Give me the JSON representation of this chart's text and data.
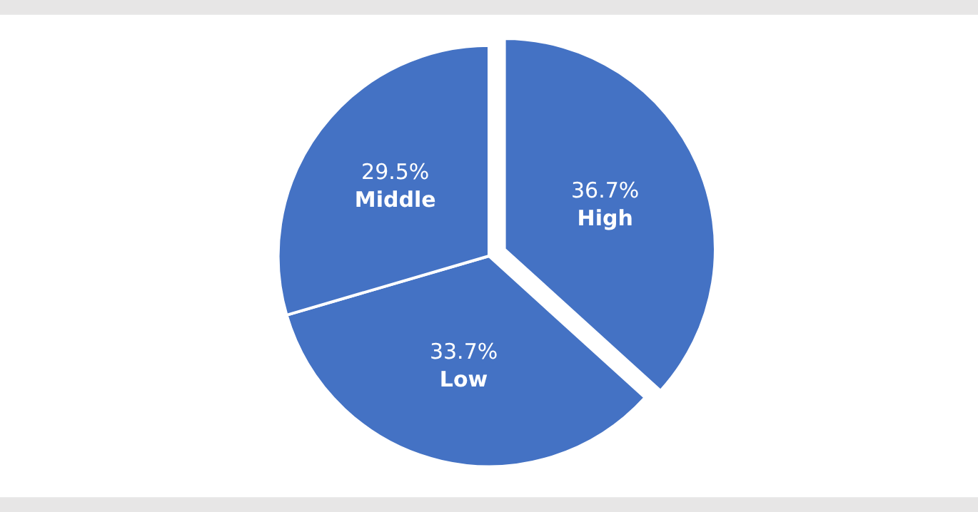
{
  "chart_data": {
    "type": "pie",
    "categories": [
      "High",
      "Low",
      "Middle"
    ],
    "values": [
      36.7,
      33.7,
      29.5
    ],
    "colors": [
      "#4472c4",
      "#4472c4",
      "#4472c4"
    ],
    "value_labels": [
      "36.7%",
      "33.7%",
      "29.5%"
    ],
    "legend": false
  }
}
